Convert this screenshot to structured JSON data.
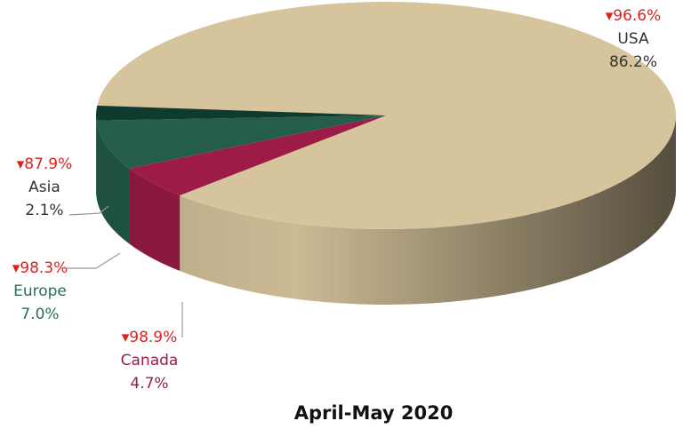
{
  "chart_data": {
    "type": "pie3d",
    "title": "April-May 2020",
    "categories": [
      "USA",
      "Canada",
      "Europe",
      "Asia"
    ],
    "values": [
      86.2,
      4.7,
      7.0,
      2.1
    ],
    "value_labels": [
      "86.2%",
      "4.7%",
      "7.0%",
      "2.1%"
    ],
    "change_labels": [
      "▾96.6%",
      "▾98.9%",
      "▾98.3%",
      "▾87.9%"
    ],
    "colors": [
      "#d6c49c",
      "#9c1b47",
      "#245e4b",
      "#0f3a30"
    ],
    "label_colors": [
      "#333333",
      "#9c1b47",
      "#2e6e55",
      "#333333"
    ]
  }
}
